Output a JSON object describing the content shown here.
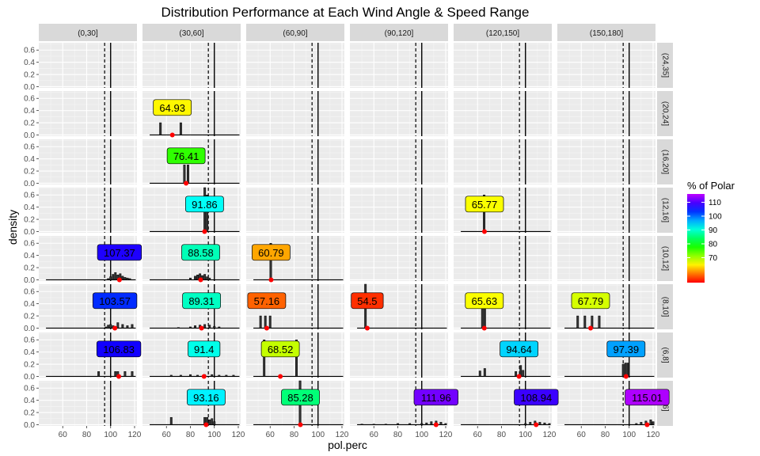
{
  "chart_data": {
    "type": "bar",
    "title": "Distribution Performance at Each Wind Angle & Speed Range",
    "xlabel": "pol.perc",
    "ylabel": "density",
    "xlim": [
      40,
      122
    ],
    "ylim": [
      -0.02,
      0.72
    ],
    "x_ticks": [
      60,
      80,
      100,
      120
    ],
    "y_ticks": [
      0.0,
      0.2,
      0.4,
      0.6
    ],
    "x_tick_labels": [
      "60",
      "80",
      "100",
      "120"
    ],
    "y_tick_labels": [
      "0.0",
      "0.2",
      "0.4",
      "0.6"
    ],
    "columns": [
      "(0,30]",
      "(30,60]",
      "(60,90]",
      "(90,120]",
      "(120,150]",
      "(150,180]"
    ],
    "rows": [
      "(24,35]",
      "(20,24]",
      "(16,20]",
      "(12,16]",
      "(10,12]",
      "(8,10]",
      "(6,8]",
      "(0,6]"
    ],
    "reference_lines": {
      "dashed": 95,
      "solid": 100
    },
    "grid": true,
    "legend": {
      "title": "% of Polar",
      "placement": "right",
      "range": [
        52,
        116
      ],
      "ticks": [
        70,
        80,
        90,
        100,
        110
      ],
      "tick_labels": [
        "70",
        "80",
        "90",
        "100",
        "110"
      ]
    },
    "panels": [
      {
        "row": "(20,24]",
        "col": "(30,60]",
        "label": "64.93",
        "value": 64.93,
        "bars": [
          [
            55,
            0.2
          ],
          [
            72,
            0.2
          ]
        ]
      },
      {
        "row": "(16,20]",
        "col": "(30,60]",
        "label": "76.41",
        "value": 76.41,
        "bars": [
          [
            75,
            0.3
          ],
          [
            78,
            0.3
          ]
        ]
      },
      {
        "row": "(12,16]",
        "col": "(30,60]",
        "label": "91.86",
        "value": 91.86,
        "bars": [
          [
            92,
            0.75
          ],
          [
            94,
            0.6
          ]
        ]
      },
      {
        "row": "(12,16]",
        "col": "(120,150]",
        "label": "65.77",
        "value": 65.77,
        "bars": [
          [
            65.5,
            0.6
          ]
        ]
      },
      {
        "row": "(10,12]",
        "col": "(0,30]",
        "label": "107.37",
        "value": 107.37,
        "bars": [
          [
            98,
            0.02
          ],
          [
            100,
            0.05
          ],
          [
            102,
            0.09
          ],
          [
            104,
            0.12
          ],
          [
            106,
            0.08
          ],
          [
            108,
            0.1
          ],
          [
            110,
            0.06
          ],
          [
            112,
            0.04
          ],
          [
            114,
            0.03
          ],
          [
            116,
            0.02
          ]
        ]
      },
      {
        "row": "(10,12]",
        "col": "(30,60]",
        "label": "88.58",
        "value": 88.58,
        "bars": [
          [
            80,
            0.03
          ],
          [
            84,
            0.06
          ],
          [
            86,
            0.08
          ],
          [
            88,
            0.1
          ],
          [
            90,
            0.07
          ],
          [
            92,
            0.09
          ],
          [
            94,
            0.05
          ],
          [
            96,
            0.03
          ]
        ]
      },
      {
        "row": "(10,12]",
        "col": "(60,90]",
        "label": "60.79",
        "value": 60.79,
        "bars": [
          [
            60.5,
            0.6
          ]
        ]
      },
      {
        "row": "(8,10]",
        "col": "(0,30]",
        "label": "103.57",
        "value": 103.57,
        "bars": [
          [
            96,
            0.02
          ],
          [
            98,
            0.05
          ],
          [
            100,
            0.06
          ],
          [
            102,
            0.04
          ],
          [
            106,
            0.09
          ],
          [
            110,
            0.06
          ],
          [
            114,
            0.04
          ],
          [
            118,
            0.06
          ]
        ]
      },
      {
        "row": "(8,10]",
        "col": "(30,60]",
        "label": "89.31",
        "value": 89.31,
        "bars": [
          [
            70,
            0.01
          ],
          [
            80,
            0.02
          ],
          [
            84,
            0.04
          ],
          [
            88,
            0.05
          ],
          [
            92,
            0.06
          ],
          [
            96,
            0.05
          ],
          [
            100,
            0.03
          ],
          [
            104,
            0.02
          ]
        ]
      },
      {
        "row": "(8,10]",
        "col": "(60,90]",
        "label": "57.16",
        "value": 57.16,
        "bars": [
          [
            52,
            0.2
          ],
          [
            56,
            0.2
          ],
          [
            60,
            0.2
          ]
        ]
      },
      {
        "row": "(8,10]",
        "col": "(90,120]",
        "label": "54.5",
        "value": 54.5,
        "bars": [
          [
            53,
            0.75
          ]
        ]
      },
      {
        "row": "(8,10]",
        "col": "(120,150]",
        "label": "65.63",
        "value": 65.63,
        "bars": [
          [
            64,
            0.4
          ],
          [
            66,
            0.4
          ]
        ]
      },
      {
        "row": "(8,10]",
        "col": "(150,180]",
        "label": "67.79",
        "value": 67.79,
        "bars": [
          [
            57,
            0.2
          ],
          [
            63,
            0.2
          ],
          [
            69,
            0.2
          ],
          [
            75,
            0.2
          ]
        ]
      },
      {
        "row": "(6,8]",
        "col": "(0,30]",
        "label": "106.83",
        "value": 106.83,
        "bars": [
          [
            90,
            0.08
          ],
          [
            104,
            0.08
          ],
          [
            106,
            0.08
          ],
          [
            112,
            0.08
          ],
          [
            118,
            0.08
          ]
        ]
      },
      {
        "row": "(6,8]",
        "col": "(30,60]",
        "label": "91.4",
        "value": 91.4,
        "bars": [
          [
            64,
            0.02
          ],
          [
            72,
            0.02
          ],
          [
            80,
            0.03
          ],
          [
            86,
            0.02
          ],
          [
            92,
            0.03
          ],
          [
            98,
            0.03
          ],
          [
            104,
            0.02
          ],
          [
            110,
            0.02
          ],
          [
            116,
            0.02
          ]
        ]
      },
      {
        "row": "(6,8]",
        "col": "(60,90]",
        "label": "68.52",
        "value": 68.52,
        "bars": [
          [
            55,
            0.6
          ],
          [
            82,
            0.6
          ]
        ]
      },
      {
        "row": "(6,8]",
        "col": "(120,150]",
        "label": "94.64",
        "value": 94.64,
        "bars": [
          [
            62,
            0.09
          ],
          [
            66,
            0.13
          ],
          [
            92,
            0.08
          ],
          [
            96,
            0.18
          ],
          [
            98,
            0.1
          ]
        ]
      },
      {
        "row": "(6,8]",
        "col": "(150,180]",
        "label": "97.39",
        "value": 97.39,
        "bars": [
          [
            95,
            0.2
          ],
          [
            97,
            0.22
          ],
          [
            99,
            0.22
          ]
        ]
      },
      {
        "row": "(0,6]",
        "col": "(30,60]",
        "label": "93.16",
        "value": 93.16,
        "bars": [
          [
            64,
            0.12
          ],
          [
            92,
            0.12
          ],
          [
            94,
            0.12
          ],
          [
            96,
            0.08
          ],
          [
            98,
            0.1
          ],
          [
            100,
            0.05
          ]
        ]
      },
      {
        "row": "(0,6]",
        "col": "(60,90]",
        "label": "85.28",
        "value": 85.28,
        "bars": [
          [
            85,
            0.75
          ]
        ]
      },
      {
        "row": "(0,6]",
        "col": "(90,120]",
        "label": "111.96",
        "value": 111.96,
        "bars": [
          [
            50,
            0.01
          ],
          [
            60,
            0.01
          ],
          [
            70,
            0.01
          ],
          [
            80,
            0.02
          ],
          [
            90,
            0.02
          ],
          [
            100,
            0.02
          ],
          [
            104,
            0.03
          ],
          [
            108,
            0.05
          ],
          [
            112,
            0.06
          ],
          [
            116,
            0.04
          ],
          [
            120,
            0.02
          ]
        ]
      },
      {
        "row": "(0,6]",
        "col": "(120,150]",
        "label": "108.94",
        "value": 108.94,
        "bars": [
          [
            100,
            0.02
          ],
          [
            104,
            0.04
          ],
          [
            108,
            0.06
          ],
          [
            112,
            0.04
          ],
          [
            116,
            0.03
          ],
          [
            120,
            0.02
          ]
        ]
      },
      {
        "row": "(0,6]",
        "col": "(150,180]",
        "label": "115.01",
        "value": 115.01,
        "bars": [
          [
            106,
            0.02
          ],
          [
            110,
            0.04
          ],
          [
            114,
            0.06
          ],
          [
            118,
            0.08
          ],
          [
            120,
            0.05
          ]
        ]
      }
    ]
  }
}
